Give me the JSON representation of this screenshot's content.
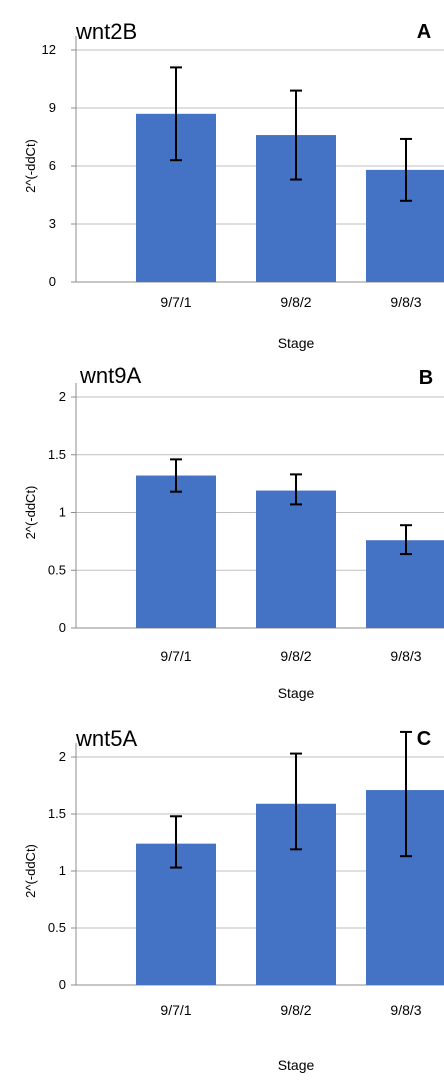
{
  "chart_data": [
    {
      "type": "bar",
      "title": "wnt2B",
      "panel": "A",
      "xlabel": "Stage",
      "ylabel": "2^(-ddCt)",
      "categories": [
        "9/7/1",
        "9/8/2",
        "9/8/3"
      ],
      "values": [
        8.7,
        7.6,
        5.8
      ],
      "error_low": [
        6.3,
        5.3,
        4.2
      ],
      "error_high": [
        11.1,
        9.9,
        7.4
      ],
      "ylim": [
        0,
        12
      ],
      "yticks": [
        0,
        3,
        6,
        9,
        12
      ],
      "ytick_labels": [
        "0",
        "3",
        "6",
        "9",
        "12"
      ],
      "grid": true
    },
    {
      "type": "bar",
      "title": "wnt9A",
      "panel": "B",
      "xlabel": "Stage",
      "ylabel": "2^(-ddCt)",
      "categories": [
        "9/7/1",
        "9/8/2",
        "9/8/3"
      ],
      "values": [
        1.32,
        1.19,
        0.76
      ],
      "error_low": [
        1.18,
        1.07,
        0.64
      ],
      "error_high": [
        1.46,
        1.33,
        0.89
      ],
      "ylim": [
        0,
        2
      ],
      "yticks": [
        0,
        0.5,
        1,
        1.5,
        2
      ],
      "ytick_labels": [
        "0",
        "0.5",
        "1",
        "1.5",
        "2"
      ],
      "grid": true
    },
    {
      "type": "bar",
      "title": "wnt5A",
      "panel": "C",
      "xlabel": "Stage",
      "ylabel": "2^(-ddCt)",
      "categories": [
        "9/7/1",
        "9/8/2",
        "9/8/3"
      ],
      "values": [
        1.24,
        1.59,
        1.71
      ],
      "error_low": [
        1.03,
        1.19,
        1.13
      ],
      "error_high": [
        1.48,
        2.03,
        2.22
      ],
      "ylim": [
        0,
        2
      ],
      "yticks": [
        0,
        0.5,
        1,
        1.5,
        2
      ],
      "ytick_labels": [
        "0",
        "0.5",
        "1",
        "1.5",
        "2"
      ],
      "grid": true
    }
  ],
  "colors": {
    "bar": "#4472C4",
    "grid": "#BFBFBF",
    "axis": "#8C8C8C",
    "errorbar": "#000000"
  }
}
